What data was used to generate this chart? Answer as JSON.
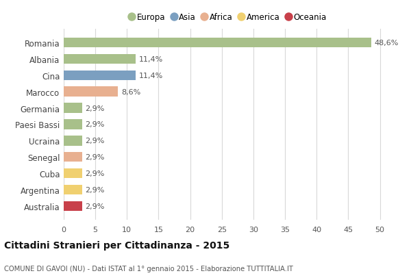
{
  "countries": [
    "Romania",
    "Albania",
    "Cina",
    "Marocco",
    "Germania",
    "Paesi Bassi",
    "Ucraina",
    "Senegal",
    "Cuba",
    "Argentina",
    "Australia"
  ],
  "values": [
    48.6,
    11.4,
    11.4,
    8.6,
    2.9,
    2.9,
    2.9,
    2.9,
    2.9,
    2.9,
    2.9
  ],
  "labels": [
    "48,6%",
    "11,4%",
    "11,4%",
    "8,6%",
    "2,9%",
    "2,9%",
    "2,9%",
    "2,9%",
    "2,9%",
    "2,9%",
    "2,9%"
  ],
  "colors": [
    "#a8c08a",
    "#a8c08a",
    "#7b9fc0",
    "#e8b090",
    "#a8c08a",
    "#a8c08a",
    "#a8c08a",
    "#e8b090",
    "#f0d070",
    "#f0d070",
    "#c8404a"
  ],
  "legend_labels": [
    "Europa",
    "Asia",
    "Africa",
    "America",
    "Oceania"
  ],
  "legend_colors": [
    "#a8c08a",
    "#7b9fc0",
    "#e8b090",
    "#f0d070",
    "#c8404a"
  ],
  "title": "Cittadini Stranieri per Cittadinanza - 2015",
  "subtitle": "COMUNE DI GAVOI (NU) - Dati ISTAT al 1° gennaio 2015 - Elaborazione TUTTITALIA.IT",
  "xlim": [
    0,
    52
  ],
  "xticks": [
    0,
    5,
    10,
    15,
    20,
    25,
    30,
    35,
    40,
    45,
    50
  ],
  "background_color": "#ffffff",
  "grid_color": "#d8d8d8"
}
